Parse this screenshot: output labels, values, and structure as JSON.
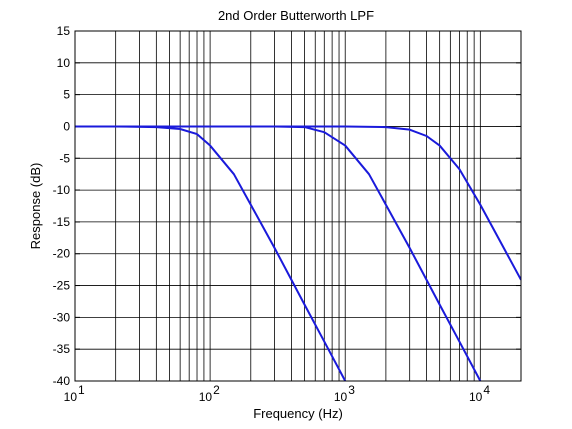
{
  "chart_data": {
    "type": "line",
    "title": "2nd Order Butterworth LPF",
    "xlabel": "Frequency (Hz)",
    "ylabel": "Response (dB)",
    "x_scale": "log",
    "xlim": [
      10,
      20000
    ],
    "ylim": [
      -40,
      15
    ],
    "grid": true,
    "y_ticks": [
      15,
      10,
      5,
      0,
      -5,
      -10,
      -15,
      -20,
      -25,
      -30,
      -35,
      -40
    ],
    "x_major_ticks": [
      {
        "value": 10,
        "base": "10",
        "exp": "1"
      },
      {
        "value": 100,
        "base": "10",
        "exp": "2"
      },
      {
        "value": 1000,
        "base": "10",
        "exp": "3"
      },
      {
        "value": 10000,
        "base": "10",
        "exp": "4"
      }
    ],
    "line_color": "#1a1adb",
    "series": [
      {
        "cutoff_hz": 100,
        "x": [
          10,
          20,
          40,
          60,
          80,
          100,
          150,
          200,
          300,
          500,
          700,
          1000
        ],
        "y": [
          0,
          0,
          -0.1,
          -0.4,
          -1.2,
          -3,
          -7.5,
          -12.3,
          -19.1,
          -28,
          -33.8,
          -40
        ]
      },
      {
        "cutoff_hz": 1000,
        "x": [
          10,
          100,
          300,
          500,
          700,
          1000,
          1500,
          2000,
          3000,
          5000,
          7000,
          10000
        ],
        "y": [
          0,
          0,
          0,
          -0.1,
          -0.9,
          -3,
          -7.5,
          -12.3,
          -19.1,
          -28,
          -33.8,
          -40
        ]
      },
      {
        "cutoff_hz": 5000,
        "x": [
          10,
          1000,
          2000,
          3000,
          4000,
          5000,
          7000,
          10000,
          15000,
          20000
        ],
        "y": [
          0,
          0,
          -0.1,
          -0.5,
          -1.5,
          -3,
          -6.7,
          -12.3,
          -19.2,
          -24.1
        ]
      }
    ]
  }
}
